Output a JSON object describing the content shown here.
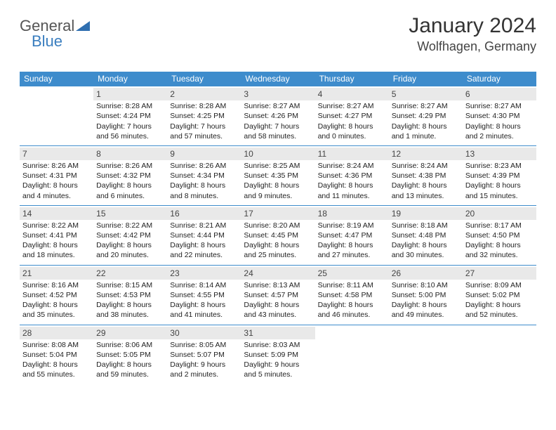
{
  "logo": {
    "text1": "General",
    "text2": "Blue",
    "triangle_color": "#2f6fb0"
  },
  "header": {
    "month_title": "January 2024",
    "location": "Wolfhagen, Germany"
  },
  "colors": {
    "header_bg": "#3e8ccc",
    "header_text": "#ffffff",
    "daynum_bg": "#e9e9e9",
    "row_border": "#3e8ccc",
    "body_text": "#222222"
  },
  "calendar": {
    "day_headers": [
      "Sunday",
      "Monday",
      "Tuesday",
      "Wednesday",
      "Thursday",
      "Friday",
      "Saturday"
    ],
    "weeks": [
      [
        {
          "n": "",
          "l1": "",
          "l2": "",
          "l3": "",
          "l4": "",
          "empty": true
        },
        {
          "n": "1",
          "l1": "Sunrise: 8:28 AM",
          "l2": "Sunset: 4:24 PM",
          "l3": "Daylight: 7 hours",
          "l4": "and 56 minutes."
        },
        {
          "n": "2",
          "l1": "Sunrise: 8:28 AM",
          "l2": "Sunset: 4:25 PM",
          "l3": "Daylight: 7 hours",
          "l4": "and 57 minutes."
        },
        {
          "n": "3",
          "l1": "Sunrise: 8:27 AM",
          "l2": "Sunset: 4:26 PM",
          "l3": "Daylight: 7 hours",
          "l4": "and 58 minutes."
        },
        {
          "n": "4",
          "l1": "Sunrise: 8:27 AM",
          "l2": "Sunset: 4:27 PM",
          "l3": "Daylight: 8 hours",
          "l4": "and 0 minutes."
        },
        {
          "n": "5",
          "l1": "Sunrise: 8:27 AM",
          "l2": "Sunset: 4:29 PM",
          "l3": "Daylight: 8 hours",
          "l4": "and 1 minute."
        },
        {
          "n": "6",
          "l1": "Sunrise: 8:27 AM",
          "l2": "Sunset: 4:30 PM",
          "l3": "Daylight: 8 hours",
          "l4": "and 2 minutes."
        }
      ],
      [
        {
          "n": "7",
          "l1": "Sunrise: 8:26 AM",
          "l2": "Sunset: 4:31 PM",
          "l3": "Daylight: 8 hours",
          "l4": "and 4 minutes."
        },
        {
          "n": "8",
          "l1": "Sunrise: 8:26 AM",
          "l2": "Sunset: 4:32 PM",
          "l3": "Daylight: 8 hours",
          "l4": "and 6 minutes."
        },
        {
          "n": "9",
          "l1": "Sunrise: 8:26 AM",
          "l2": "Sunset: 4:34 PM",
          "l3": "Daylight: 8 hours",
          "l4": "and 8 minutes."
        },
        {
          "n": "10",
          "l1": "Sunrise: 8:25 AM",
          "l2": "Sunset: 4:35 PM",
          "l3": "Daylight: 8 hours",
          "l4": "and 9 minutes."
        },
        {
          "n": "11",
          "l1": "Sunrise: 8:24 AM",
          "l2": "Sunset: 4:36 PM",
          "l3": "Daylight: 8 hours",
          "l4": "and 11 minutes."
        },
        {
          "n": "12",
          "l1": "Sunrise: 8:24 AM",
          "l2": "Sunset: 4:38 PM",
          "l3": "Daylight: 8 hours",
          "l4": "and 13 minutes."
        },
        {
          "n": "13",
          "l1": "Sunrise: 8:23 AM",
          "l2": "Sunset: 4:39 PM",
          "l3": "Daylight: 8 hours",
          "l4": "and 15 minutes."
        }
      ],
      [
        {
          "n": "14",
          "l1": "Sunrise: 8:22 AM",
          "l2": "Sunset: 4:41 PM",
          "l3": "Daylight: 8 hours",
          "l4": "and 18 minutes."
        },
        {
          "n": "15",
          "l1": "Sunrise: 8:22 AM",
          "l2": "Sunset: 4:42 PM",
          "l3": "Daylight: 8 hours",
          "l4": "and 20 minutes."
        },
        {
          "n": "16",
          "l1": "Sunrise: 8:21 AM",
          "l2": "Sunset: 4:44 PM",
          "l3": "Daylight: 8 hours",
          "l4": "and 22 minutes."
        },
        {
          "n": "17",
          "l1": "Sunrise: 8:20 AM",
          "l2": "Sunset: 4:45 PM",
          "l3": "Daylight: 8 hours",
          "l4": "and 25 minutes."
        },
        {
          "n": "18",
          "l1": "Sunrise: 8:19 AM",
          "l2": "Sunset: 4:47 PM",
          "l3": "Daylight: 8 hours",
          "l4": "and 27 minutes."
        },
        {
          "n": "19",
          "l1": "Sunrise: 8:18 AM",
          "l2": "Sunset: 4:48 PM",
          "l3": "Daylight: 8 hours",
          "l4": "and 30 minutes."
        },
        {
          "n": "20",
          "l1": "Sunrise: 8:17 AM",
          "l2": "Sunset: 4:50 PM",
          "l3": "Daylight: 8 hours",
          "l4": "and 32 minutes."
        }
      ],
      [
        {
          "n": "21",
          "l1": "Sunrise: 8:16 AM",
          "l2": "Sunset: 4:52 PM",
          "l3": "Daylight: 8 hours",
          "l4": "and 35 minutes."
        },
        {
          "n": "22",
          "l1": "Sunrise: 8:15 AM",
          "l2": "Sunset: 4:53 PM",
          "l3": "Daylight: 8 hours",
          "l4": "and 38 minutes."
        },
        {
          "n": "23",
          "l1": "Sunrise: 8:14 AM",
          "l2": "Sunset: 4:55 PM",
          "l3": "Daylight: 8 hours",
          "l4": "and 41 minutes."
        },
        {
          "n": "24",
          "l1": "Sunrise: 8:13 AM",
          "l2": "Sunset: 4:57 PM",
          "l3": "Daylight: 8 hours",
          "l4": "and 43 minutes."
        },
        {
          "n": "25",
          "l1": "Sunrise: 8:11 AM",
          "l2": "Sunset: 4:58 PM",
          "l3": "Daylight: 8 hours",
          "l4": "and 46 minutes."
        },
        {
          "n": "26",
          "l1": "Sunrise: 8:10 AM",
          "l2": "Sunset: 5:00 PM",
          "l3": "Daylight: 8 hours",
          "l4": "and 49 minutes."
        },
        {
          "n": "27",
          "l1": "Sunrise: 8:09 AM",
          "l2": "Sunset: 5:02 PM",
          "l3": "Daylight: 8 hours",
          "l4": "and 52 minutes."
        }
      ],
      [
        {
          "n": "28",
          "l1": "Sunrise: 8:08 AM",
          "l2": "Sunset: 5:04 PM",
          "l3": "Daylight: 8 hours",
          "l4": "and 55 minutes."
        },
        {
          "n": "29",
          "l1": "Sunrise: 8:06 AM",
          "l2": "Sunset: 5:05 PM",
          "l3": "Daylight: 8 hours",
          "l4": "and 59 minutes."
        },
        {
          "n": "30",
          "l1": "Sunrise: 8:05 AM",
          "l2": "Sunset: 5:07 PM",
          "l3": "Daylight: 9 hours",
          "l4": "and 2 minutes."
        },
        {
          "n": "31",
          "l1": "Sunrise: 8:03 AM",
          "l2": "Sunset: 5:09 PM",
          "l3": "Daylight: 9 hours",
          "l4": "and 5 minutes."
        },
        {
          "n": "",
          "l1": "",
          "l2": "",
          "l3": "",
          "l4": "",
          "empty": true
        },
        {
          "n": "",
          "l1": "",
          "l2": "",
          "l3": "",
          "l4": "",
          "empty": true
        },
        {
          "n": "",
          "l1": "",
          "l2": "",
          "l3": "",
          "l4": "",
          "empty": true
        }
      ]
    ]
  }
}
